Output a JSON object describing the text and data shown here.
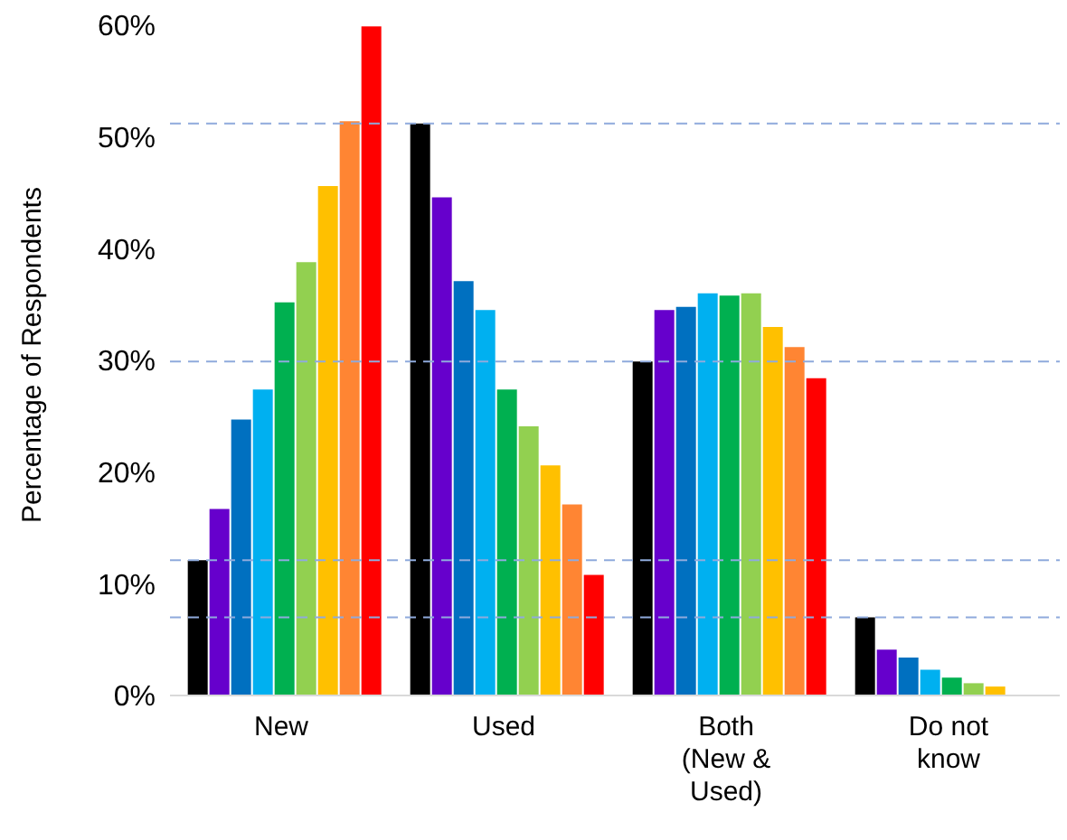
{
  "chart_data": {
    "type": "bar",
    "ylabel": "Percentage of Respondents",
    "categories": [
      "New",
      "Used",
      "Both\n(New &\nUsed)",
      "Do not\nknow"
    ],
    "series": [
      {
        "color": "#000000",
        "values": [
          12.1,
          51.2,
          29.9,
          7.0
        ]
      },
      {
        "color": "#6600cc",
        "values": [
          16.7,
          44.6,
          34.5,
          4.1
        ]
      },
      {
        "color": "#0070c0",
        "values": [
          24.7,
          37.1,
          34.8,
          3.4
        ]
      },
      {
        "color": "#00b0f0",
        "values": [
          27.4,
          34.5,
          36.0,
          2.3
        ]
      },
      {
        "color": "#00b050",
        "values": [
          35.2,
          27.4,
          35.8,
          1.6
        ]
      },
      {
        "color": "#92d050",
        "values": [
          38.8,
          24.1,
          36.0,
          1.1
        ]
      },
      {
        "color": "#ffc000",
        "values": [
          45.6,
          20.6,
          33.0,
          0.8
        ]
      },
      {
        "color": "#ff8533",
        "values": [
          51.4,
          17.1,
          31.2,
          null
        ]
      },
      {
        "color": "#ff0000",
        "values": [
          59.9,
          10.8,
          28.4,
          null
        ]
      }
    ],
    "ylim": [
      0,
      60
    ],
    "yticks": [
      {
        "value": 0,
        "label": "0%"
      },
      {
        "value": 10,
        "label": "10%"
      },
      {
        "value": 20,
        "label": "20%"
      },
      {
        "value": 30,
        "label": "30%"
      },
      {
        "value": 40,
        "label": "40%"
      },
      {
        "value": 50,
        "label": "50%"
      },
      {
        "value": 60,
        "label": "60%"
      }
    ],
    "ref_lines": [
      {
        "axis": "y",
        "value": 12.1,
        "color": "#8faadc",
        "line_style": "dashed"
      },
      {
        "axis": "y",
        "value": 51.2,
        "color": "#8faadc",
        "line_style": "dashed"
      },
      {
        "axis": "y",
        "value": 29.9,
        "color": "#8faadc",
        "line_style": "dashed"
      },
      {
        "axis": "y",
        "value": 7.0,
        "color": "#8faadc",
        "line_style": "dashed"
      }
    ],
    "grid": false,
    "legend": false
  }
}
